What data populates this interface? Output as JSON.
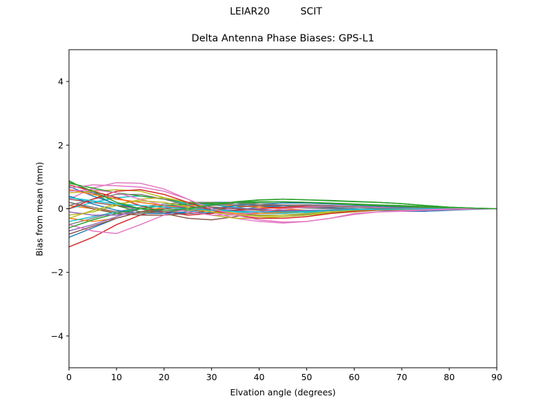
{
  "suptitle": "LEIAR20          SCIT",
  "chart_data": {
    "type": "line",
    "title": "Delta Antenna Phase Biases: GPS-L1",
    "xlabel": "Elvation angle (degrees)",
    "ylabel": "Bias from mean (mm)",
    "xlim": [
      0,
      90
    ],
    "ylim": [
      -5,
      5
    ],
    "xticks": [
      0,
      10,
      20,
      30,
      40,
      50,
      60,
      70,
      80,
      90
    ],
    "yticks": [
      -4,
      -2,
      0,
      2,
      4
    ],
    "ytick_labels": [
      "−4",
      "−2",
      "0",
      "2",
      "4"
    ],
    "grid": false,
    "legend": "none",
    "note_series_count": "many overlapping colored series",
    "x": [
      0,
      5,
      10,
      15,
      20,
      25,
      30,
      35,
      40,
      45,
      50,
      55,
      60,
      65,
      70,
      75,
      80,
      85,
      90
    ],
    "series": [
      {
        "color": "#1f77b4",
        "values": [
          -0.9,
          -0.6,
          -0.3,
          -0.1,
          0.05,
          0.15,
          0.2,
          0.2,
          0.15,
          0.1,
          0.05,
          0.03,
          0.0,
          -0.05,
          -0.08,
          -0.08,
          -0.05,
          -0.02,
          0.0
        ]
      },
      {
        "color": "#ff7f0e",
        "values": [
          0.1,
          0.0,
          -0.1,
          -0.15,
          -0.1,
          -0.05,
          0.0,
          0.05,
          0.1,
          0.1,
          0.1,
          0.08,
          0.05,
          0.03,
          0.02,
          0.01,
          0.0,
          0.0,
          0.0
        ]
      },
      {
        "color": "#2ca02c",
        "values": [
          0.88,
          0.5,
          0.1,
          -0.1,
          -0.1,
          -0.05,
          0.1,
          0.2,
          0.27,
          0.3,
          0.28,
          0.25,
          0.22,
          0.2,
          0.16,
          0.1,
          0.05,
          0.02,
          0.0
        ]
      },
      {
        "color": "#d62728",
        "values": [
          -1.2,
          -0.9,
          -0.5,
          -0.2,
          0.0,
          0.1,
          0.15,
          0.1,
          0.05,
          0.03,
          0.05,
          0.06,
          0.05,
          0.03,
          0.02,
          0.01,
          0.0,
          0.0,
          0.0
        ]
      },
      {
        "color": "#9467bd",
        "values": [
          0.6,
          0.5,
          0.3,
          0.2,
          0.1,
          0.05,
          0.0,
          -0.05,
          -0.1,
          -0.15,
          -0.1,
          -0.05,
          -0.02,
          0.0,
          0.0,
          0.0,
          0.0,
          0.0,
          0.0
        ]
      },
      {
        "color": "#8c564b",
        "values": [
          0.3,
          0.2,
          0.1,
          0.0,
          -0.15,
          -0.3,
          -0.35,
          -0.25,
          -0.1,
          -0.05,
          -0.05,
          -0.05,
          -0.05,
          -0.04,
          -0.03,
          -0.02,
          -0.01,
          0.0,
          0.0
        ]
      },
      {
        "color": "#e377c2",
        "values": [
          0.3,
          0.65,
          0.82,
          0.8,
          0.62,
          0.3,
          -0.1,
          -0.3,
          -0.4,
          -0.45,
          -0.4,
          -0.3,
          -0.15,
          -0.1,
          -0.08,
          -0.05,
          -0.03,
          -0.01,
          0.0
        ]
      },
      {
        "color": "#7f7f7f",
        "values": [
          -0.5,
          -0.3,
          -0.1,
          0.05,
          0.15,
          0.2,
          0.2,
          0.15,
          0.1,
          0.05,
          0.02,
          0.0,
          -0.02,
          -0.03,
          -0.03,
          -0.02,
          -0.01,
          0.0,
          0.0
        ]
      },
      {
        "color": "#bcbd22",
        "values": [
          0.5,
          0.55,
          0.6,
          0.55,
          0.35,
          0.05,
          -0.2,
          -0.3,
          -0.3,
          -0.25,
          -0.2,
          -0.15,
          -0.1,
          -0.05,
          -0.03,
          -0.02,
          -0.01,
          0.0,
          0.0
        ]
      },
      {
        "color": "#17becf",
        "values": [
          0.0,
          0.2,
          0.35,
          0.4,
          0.3,
          0.15,
          0.0,
          -0.1,
          -0.15,
          -0.15,
          -0.1,
          -0.05,
          -0.02,
          0.0,
          0.0,
          0.0,
          0.0,
          0.0,
          0.0
        ]
      },
      {
        "color": "#1f77b4",
        "values": [
          0.7,
          0.4,
          0.15,
          0.0,
          -0.1,
          -0.15,
          -0.12,
          -0.05,
          0.05,
          0.1,
          0.12,
          0.1,
          0.08,
          0.05,
          0.03,
          0.02,
          0.01,
          0.0,
          0.0
        ]
      },
      {
        "color": "#ff7f0e",
        "values": [
          -0.3,
          -0.4,
          -0.3,
          -0.1,
          0.05,
          0.1,
          0.12,
          0.1,
          0.05,
          0.0,
          -0.05,
          -0.05,
          -0.04,
          -0.03,
          -0.02,
          -0.01,
          0.0,
          0.0,
          0.0
        ]
      },
      {
        "color": "#2ca02c",
        "values": [
          0.8,
          0.65,
          0.5,
          0.4,
          0.3,
          0.2,
          0.15,
          0.15,
          0.2,
          0.22,
          0.2,
          0.18,
          0.15,
          0.12,
          0.1,
          0.07,
          0.04,
          0.02,
          0.0
        ]
      },
      {
        "color": "#d62728",
        "values": [
          0.75,
          0.55,
          0.35,
          0.1,
          -0.1,
          -0.2,
          -0.15,
          -0.05,
          0.0,
          0.05,
          0.08,
          0.08,
          0.06,
          0.04,
          0.02,
          0.01,
          0.0,
          0.0,
          0.0
        ]
      },
      {
        "color": "#9467bd",
        "values": [
          -0.7,
          -0.5,
          -0.25,
          0.0,
          0.1,
          0.05,
          -0.05,
          -0.15,
          -0.2,
          -0.2,
          -0.15,
          -0.1,
          -0.05,
          -0.03,
          -0.02,
          -0.01,
          0.0,
          0.0,
          0.0
        ]
      },
      {
        "color": "#8c564b",
        "values": [
          0.2,
          0.0,
          -0.15,
          -0.2,
          -0.2,
          -0.15,
          -0.05,
          0.05,
          0.1,
          0.12,
          0.12,
          0.1,
          0.07,
          0.04,
          0.02,
          0.01,
          0.0,
          0.0,
          0.0
        ]
      },
      {
        "color": "#e377c2",
        "values": [
          -0.5,
          -0.7,
          -0.78,
          -0.5,
          -0.2,
          0.0,
          0.1,
          0.15,
          0.15,
          0.12,
          0.1,
          0.08,
          0.05,
          0.03,
          0.02,
          0.01,
          0.0,
          0.0,
          0.0
        ]
      },
      {
        "color": "#7f7f7f",
        "values": [
          0.1,
          0.3,
          0.45,
          0.45,
          0.3,
          0.1,
          -0.05,
          -0.15,
          -0.2,
          -0.2,
          -0.18,
          -0.12,
          -0.08,
          -0.05,
          -0.03,
          -0.02,
          -0.01,
          0.0,
          0.0
        ]
      },
      {
        "color": "#bcbd22",
        "values": [
          -0.2,
          -0.1,
          0.1,
          0.3,
          0.35,
          0.2,
          0.0,
          -0.15,
          -0.25,
          -0.25,
          -0.2,
          -0.12,
          -0.06,
          -0.03,
          -0.02,
          -0.01,
          0.0,
          0.0,
          0.0
        ]
      },
      {
        "color": "#17becf",
        "values": [
          -0.4,
          -0.25,
          -0.1,
          0.0,
          0.1,
          0.15,
          0.12,
          0.05,
          -0.05,
          -0.1,
          -0.12,
          -0.1,
          -0.07,
          -0.04,
          -0.02,
          -0.01,
          0.0,
          0.0,
          0.0
        ]
      },
      {
        "color": "#1f77b4",
        "values": [
          0.4,
          0.15,
          -0.05,
          -0.15,
          -0.15,
          -0.1,
          0.0,
          0.1,
          0.15,
          0.18,
          0.18,
          0.15,
          0.12,
          0.08,
          0.05,
          0.03,
          0.01,
          0.0,
          0.0
        ]
      },
      {
        "color": "#ff7f0e",
        "values": [
          0.6,
          0.45,
          0.3,
          0.2,
          0.1,
          0.0,
          -0.1,
          -0.15,
          -0.15,
          -0.12,
          -0.08,
          -0.05,
          -0.03,
          -0.02,
          -0.01,
          0.0,
          0.0,
          0.0,
          0.0
        ]
      },
      {
        "color": "#2ca02c",
        "values": [
          -0.6,
          -0.35,
          -0.15,
          0.0,
          0.1,
          0.15,
          0.18,
          0.2,
          0.22,
          0.22,
          0.2,
          0.17,
          0.13,
          0.1,
          0.07,
          0.04,
          0.02,
          0.01,
          0.0
        ]
      },
      {
        "color": "#d62728",
        "values": [
          0.0,
          0.3,
          0.55,
          0.6,
          0.45,
          0.2,
          -0.05,
          -0.2,
          -0.3,
          -0.3,
          -0.25,
          -0.15,
          -0.08,
          -0.04,
          -0.02,
          -0.01,
          0.0,
          0.0,
          0.0
        ]
      },
      {
        "color": "#9467bd",
        "values": [
          -0.1,
          -0.2,
          -0.2,
          -0.1,
          0.0,
          0.05,
          0.05,
          0.02,
          -0.02,
          -0.05,
          -0.05,
          -0.04,
          -0.03,
          -0.02,
          -0.01,
          0.0,
          0.0,
          0.0,
          0.0
        ]
      },
      {
        "color": "#8c564b",
        "values": [
          -0.8,
          -0.55,
          -0.3,
          -0.1,
          0.0,
          0.05,
          0.05,
          0.0,
          -0.05,
          -0.08,
          -0.08,
          -0.06,
          -0.04,
          -0.02,
          -0.01,
          0.0,
          0.0,
          0.0,
          0.0
        ]
      },
      {
        "color": "#e377c2",
        "values": [
          0.55,
          0.6,
          0.5,
          0.3,
          0.1,
          -0.1,
          -0.2,
          -0.2,
          -0.1,
          0.0,
          0.05,
          0.07,
          0.06,
          0.04,
          0.02,
          0.01,
          0.0,
          0.0,
          0.0
        ]
      },
      {
        "color": "#7f7f7f",
        "values": [
          0.2,
          0.05,
          -0.1,
          -0.15,
          -0.1,
          0.0,
          0.1,
          0.15,
          0.15,
          0.12,
          0.1,
          0.07,
          0.04,
          0.02,
          0.01,
          0.0,
          0.0,
          0.0,
          0.0
        ]
      },
      {
        "color": "#bcbd22",
        "values": [
          -0.3,
          -0.05,
          0.15,
          0.25,
          0.2,
          0.05,
          -0.1,
          -0.2,
          -0.22,
          -0.2,
          -0.15,
          -0.1,
          -0.05,
          -0.03,
          -0.02,
          -0.01,
          0.0,
          0.0,
          0.0
        ]
      },
      {
        "color": "#17becf",
        "values": [
          0.35,
          0.25,
          0.15,
          0.1,
          0.05,
          0.0,
          -0.05,
          -0.08,
          -0.1,
          -0.1,
          -0.08,
          -0.05,
          -0.03,
          -0.02,
          -0.01,
          0.0,
          0.0,
          0.0,
          0.0
        ]
      },
      {
        "color": "#e377c2",
        "values": [
          0.65,
          0.75,
          0.72,
          0.68,
          0.55,
          0.3,
          0.0,
          -0.2,
          -0.35,
          -0.42,
          -0.4,
          -0.3,
          -0.18,
          -0.1,
          -0.06,
          -0.03,
          -0.01,
          0.0,
          0.0
        ]
      },
      {
        "color": "#2ca02c",
        "values": [
          0.85,
          0.55,
          0.2,
          0.0,
          -0.05,
          0.0,
          0.12,
          0.22,
          0.28,
          0.3,
          0.28,
          0.26,
          0.23,
          0.2,
          0.16,
          0.1,
          0.05,
          0.02,
          0.0
        ]
      }
    ]
  }
}
